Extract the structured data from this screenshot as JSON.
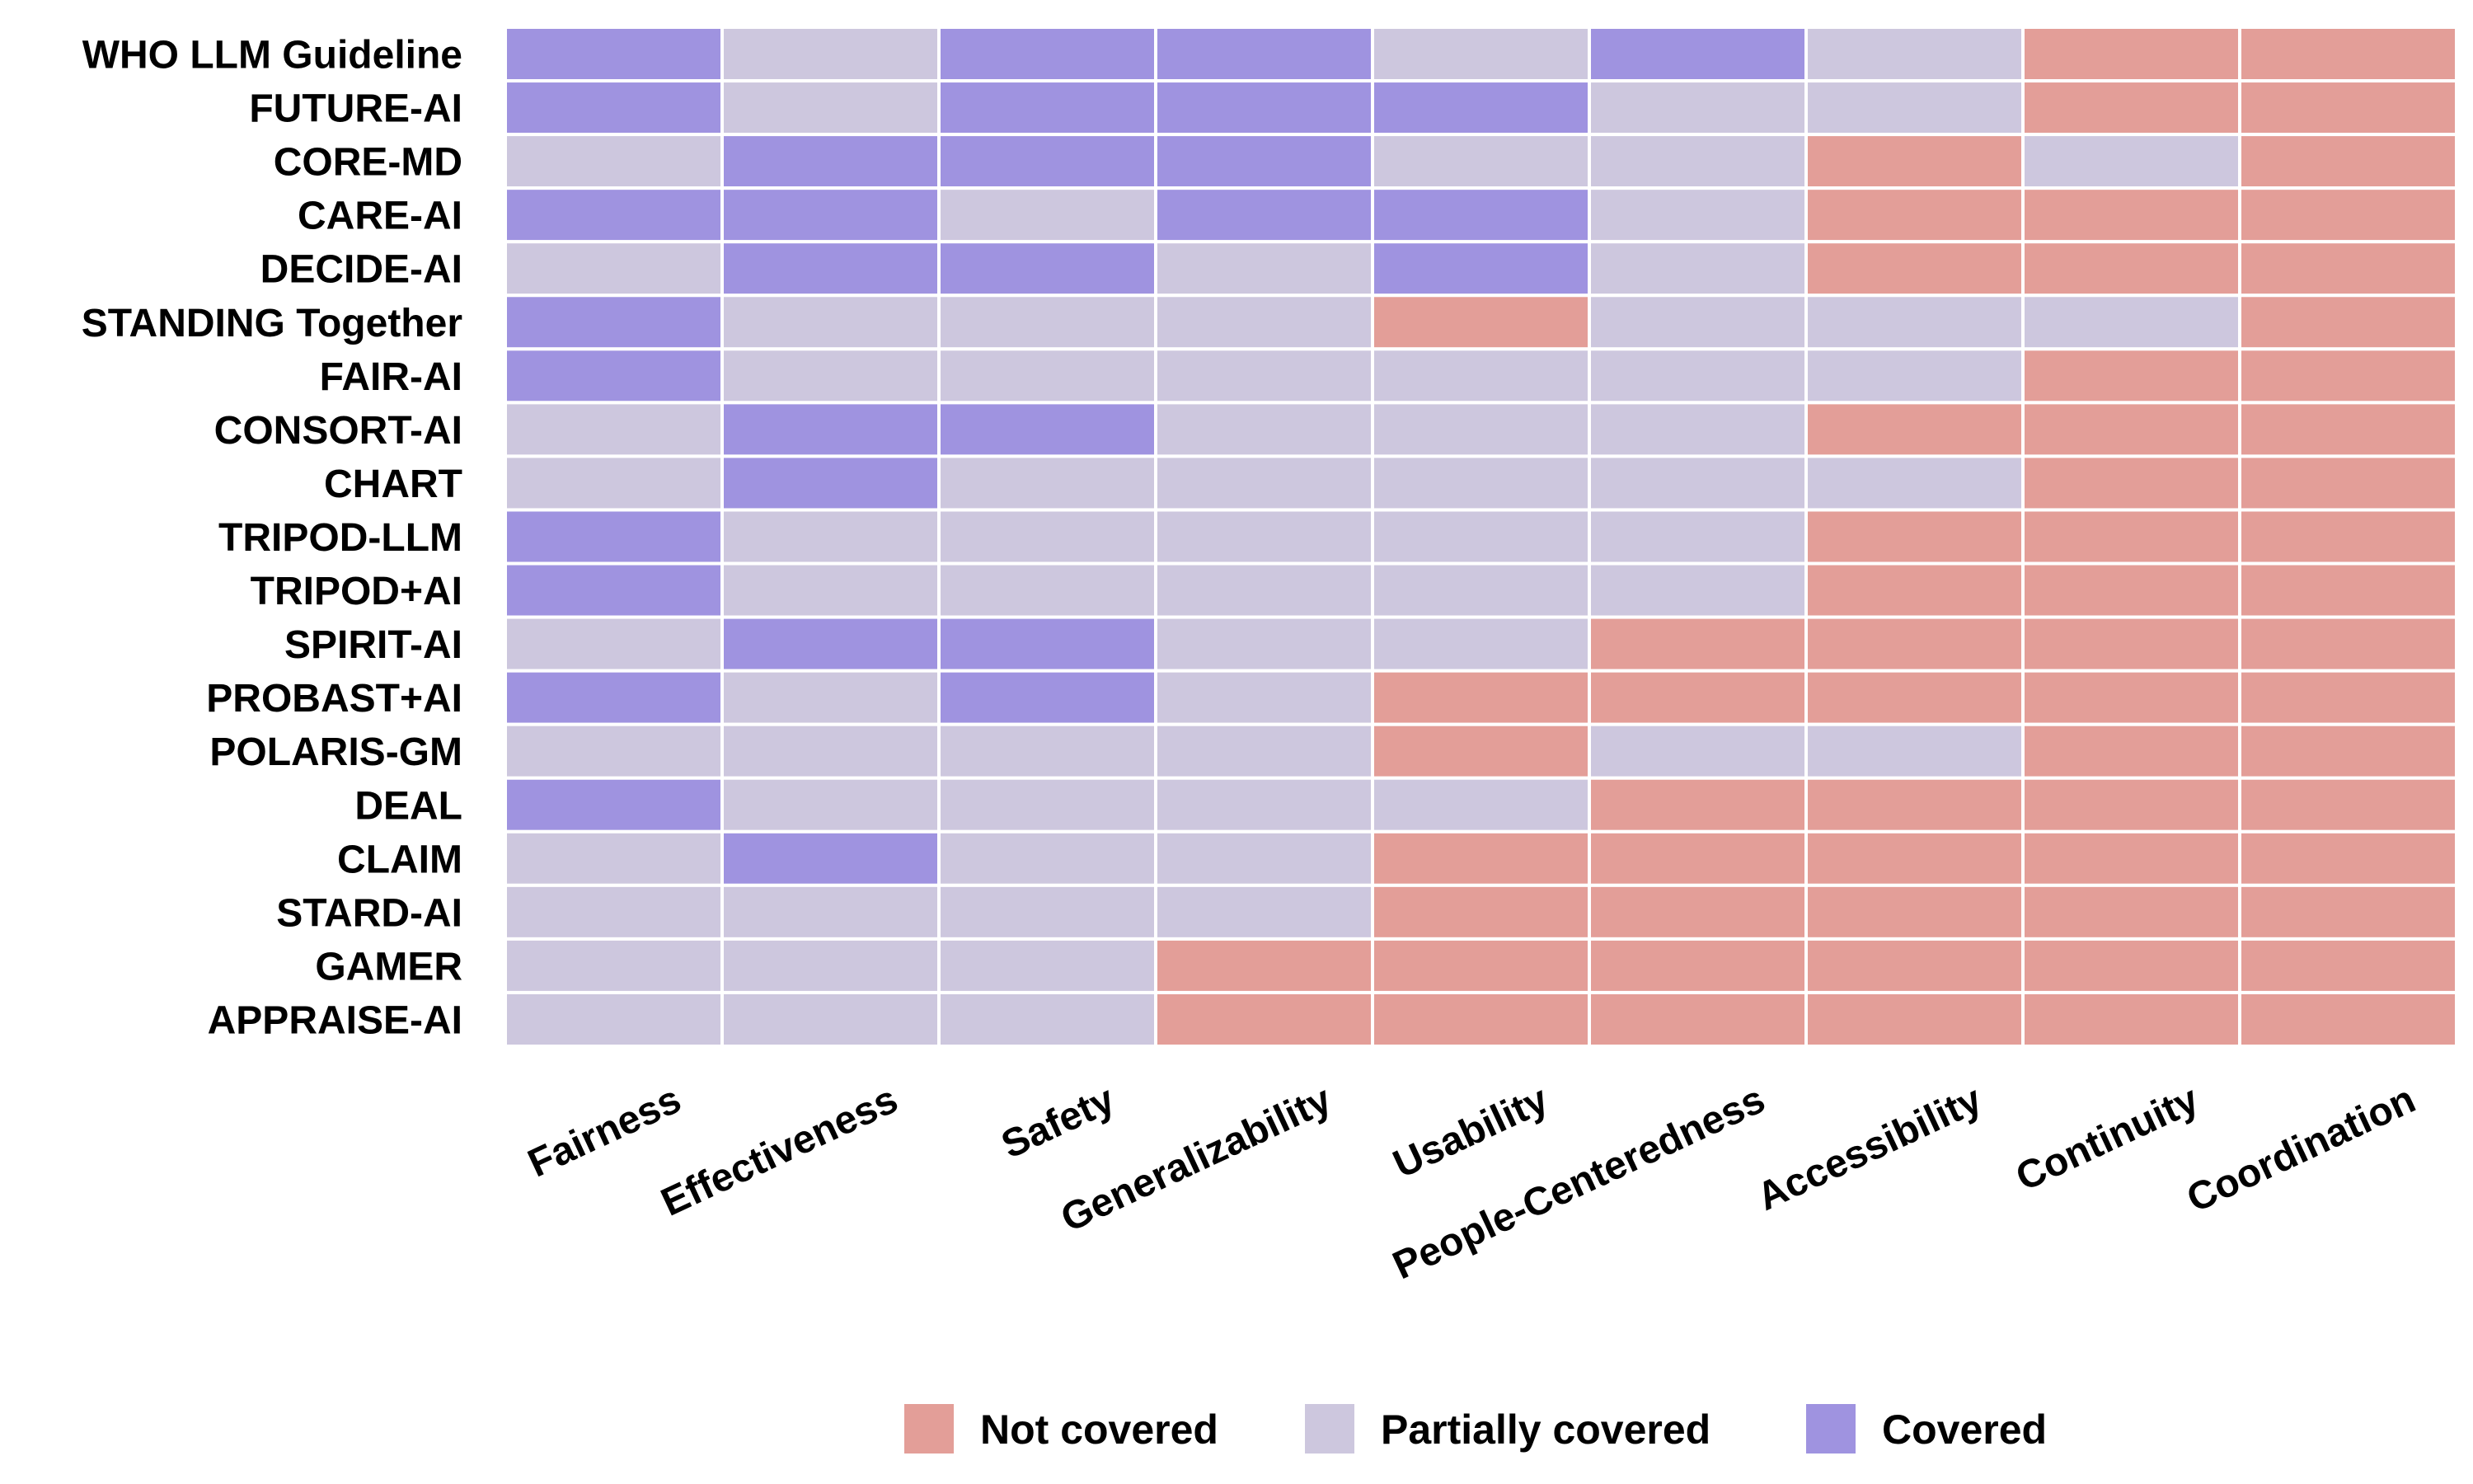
{
  "chart_data": {
    "type": "heatmap",
    "title": "",
    "xlabel": "",
    "ylabel": "",
    "x_categories": [
      "Fairness",
      "Effectiveness",
      "Safety",
      "Generalizability",
      "Usability",
      "People-Centeredness",
      "Accessibility",
      "Continuity",
      "Coordination"
    ],
    "y_categories": [
      "WHO LLM Guideline",
      "FUTURE-AI",
      "CORE-MD",
      "CARE-AI",
      "DECIDE-AI",
      "STANDING Together",
      "FAIR-AI",
      "CONSORT-AI",
      "CHART",
      "TRIPOD-LLM",
      "TRIPOD+AI",
      "SPIRIT-AI",
      "PROBAST+AI",
      "POLARIS-GM",
      "DEAL",
      "CLAIM",
      "STARD-AI",
      "GAMER",
      "APPRAISE-AI"
    ],
    "levels": {
      "N": {
        "label": "Not covered",
        "color": "#e39e98"
      },
      "P": {
        "label": "Partially covered",
        "color": "#cdc7de"
      },
      "C": {
        "label": "Covered",
        "color": "#9f93e0"
      }
    },
    "legend_order": [
      "N",
      "P",
      "C"
    ],
    "legend_position": "bottom",
    "values": [
      [
        "C",
        "P",
        "C",
        "C",
        "P",
        "C",
        "P",
        "N",
        "N"
      ],
      [
        "C",
        "P",
        "C",
        "C",
        "C",
        "P",
        "P",
        "N",
        "N"
      ],
      [
        "P",
        "C",
        "C",
        "C",
        "P",
        "P",
        "N",
        "P",
        "N"
      ],
      [
        "C",
        "C",
        "P",
        "C",
        "C",
        "P",
        "N",
        "N",
        "N"
      ],
      [
        "P",
        "C",
        "C",
        "P",
        "C",
        "P",
        "N",
        "N",
        "N"
      ],
      [
        "C",
        "P",
        "P",
        "P",
        "N",
        "P",
        "P",
        "P",
        "N"
      ],
      [
        "C",
        "P",
        "P",
        "P",
        "P",
        "P",
        "P",
        "N",
        "N"
      ],
      [
        "P",
        "C",
        "C",
        "P",
        "P",
        "P",
        "N",
        "N",
        "N"
      ],
      [
        "P",
        "C",
        "P",
        "P",
        "P",
        "P",
        "P",
        "N",
        "N"
      ],
      [
        "C",
        "P",
        "P",
        "P",
        "P",
        "P",
        "N",
        "N",
        "N"
      ],
      [
        "C",
        "P",
        "P",
        "P",
        "P",
        "P",
        "N",
        "N",
        "N"
      ],
      [
        "P",
        "C",
        "C",
        "P",
        "P",
        "N",
        "N",
        "N",
        "N"
      ],
      [
        "C",
        "P",
        "C",
        "P",
        "N",
        "N",
        "N",
        "N",
        "N"
      ],
      [
        "P",
        "P",
        "P",
        "P",
        "N",
        "P",
        "P",
        "N",
        "N"
      ],
      [
        "C",
        "P",
        "P",
        "P",
        "P",
        "N",
        "N",
        "N",
        "N"
      ],
      [
        "P",
        "C",
        "P",
        "P",
        "N",
        "N",
        "N",
        "N",
        "N"
      ],
      [
        "P",
        "P",
        "P",
        "P",
        "N",
        "N",
        "N",
        "N",
        "N"
      ],
      [
        "P",
        "P",
        "P",
        "N",
        "N",
        "N",
        "N",
        "N",
        "N"
      ],
      [
        "P",
        "P",
        "P",
        "N",
        "N",
        "N",
        "N",
        "N",
        "N"
      ]
    ]
  }
}
